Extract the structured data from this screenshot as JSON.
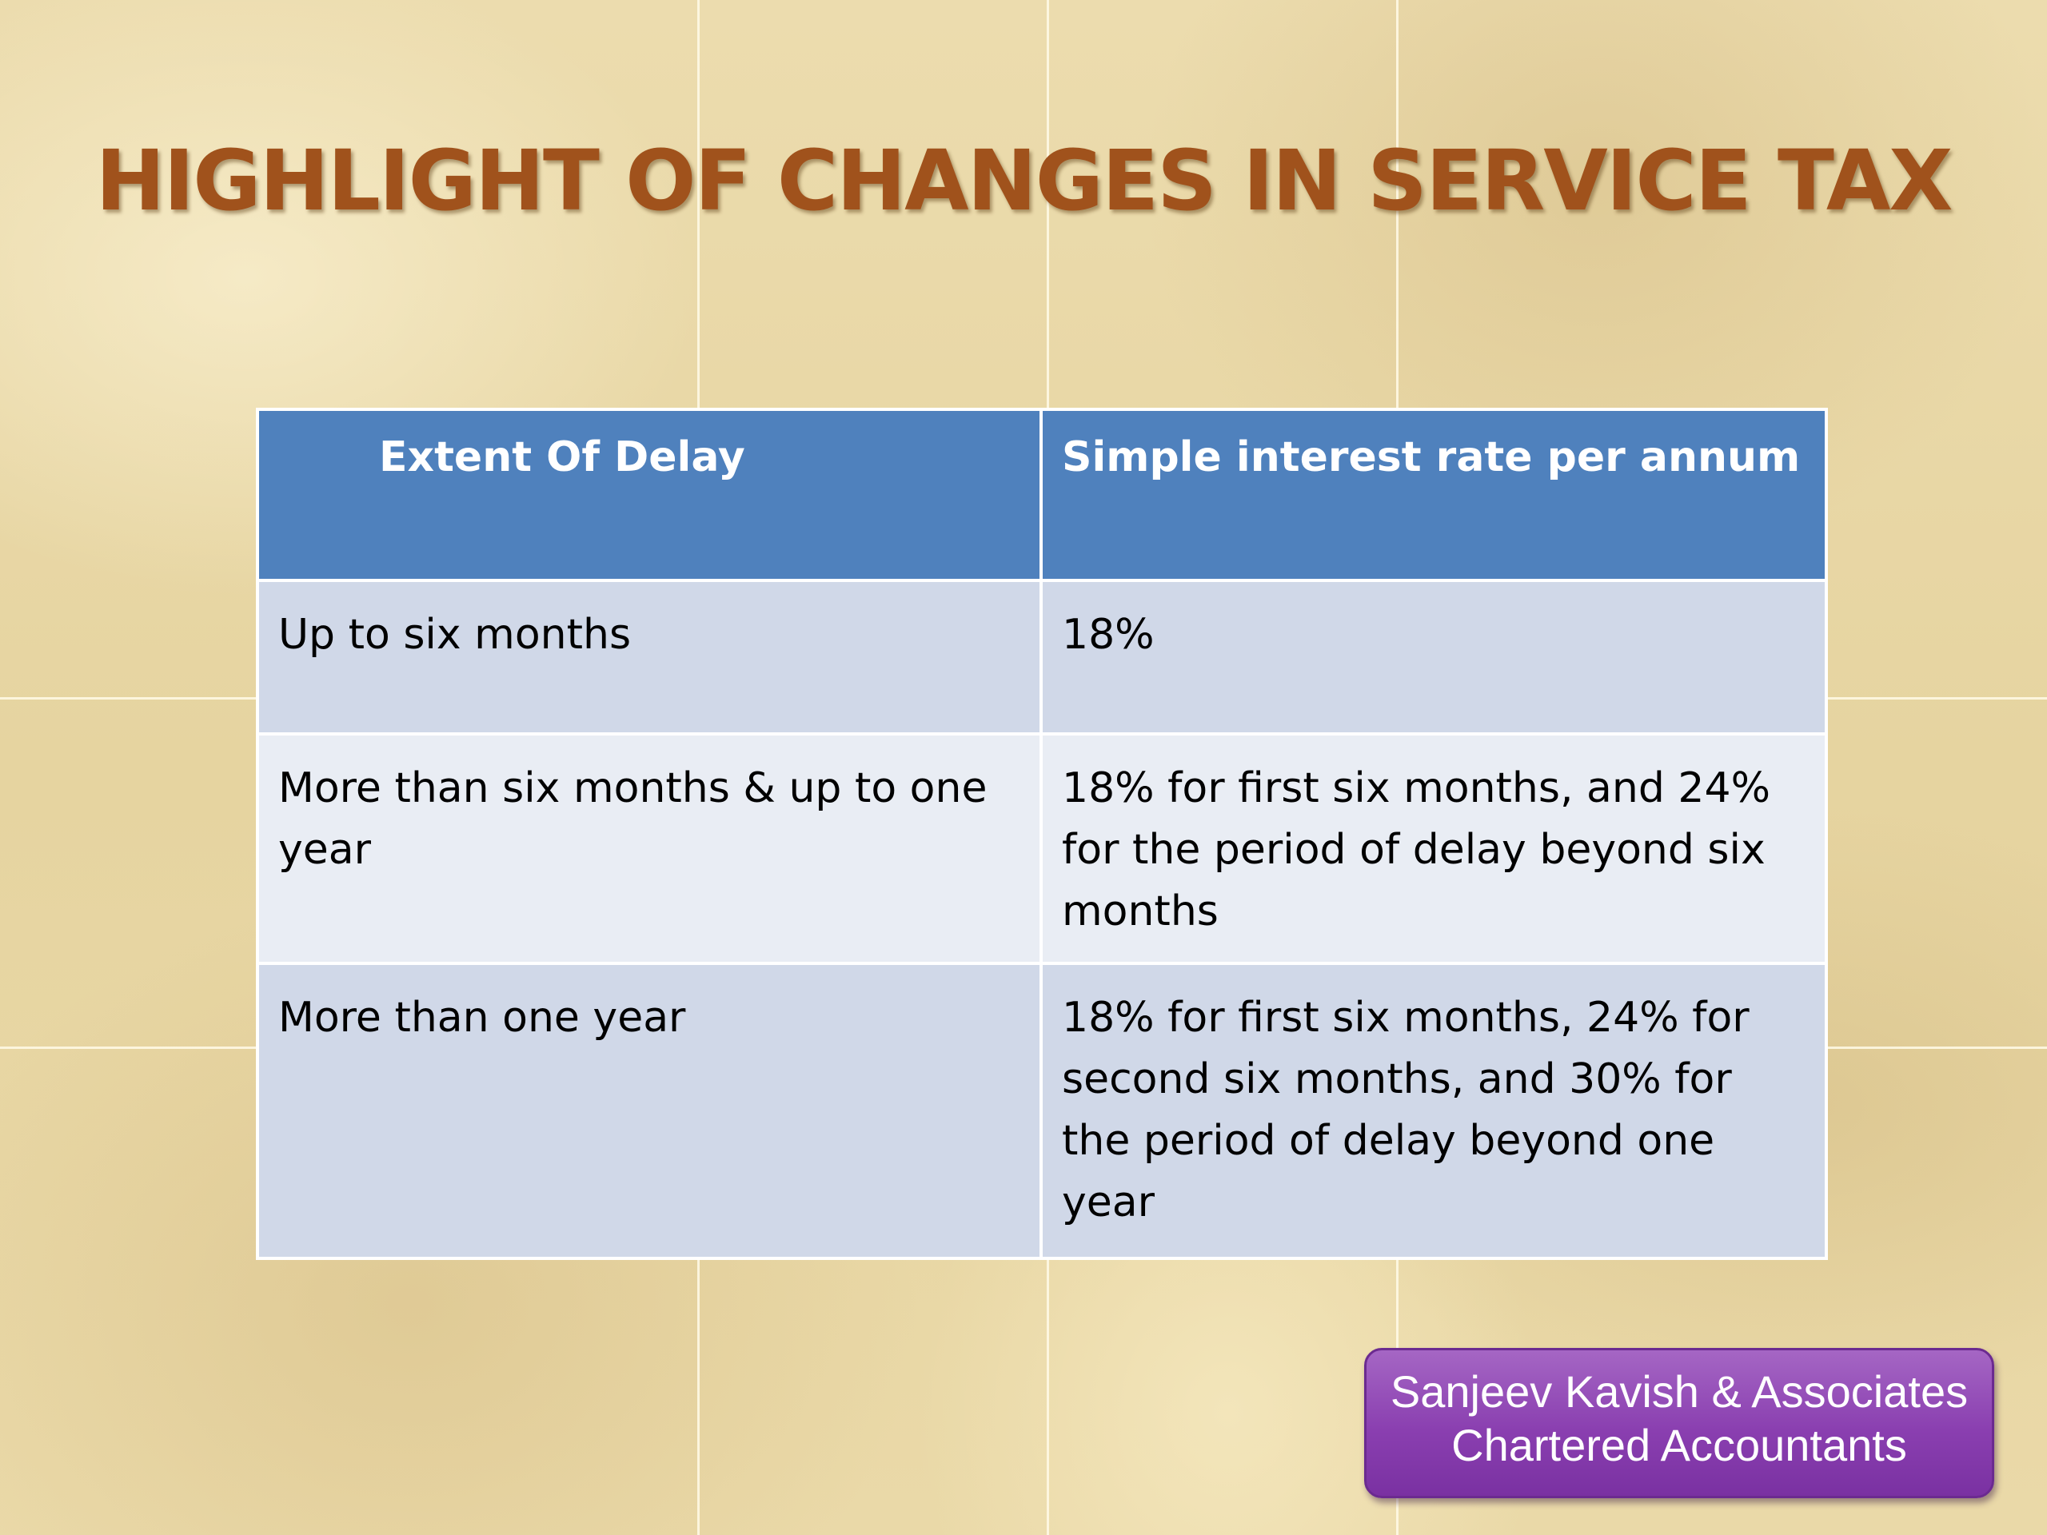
{
  "slide": {
    "title": "HIGHLIGHT OF CHANGES IN SERVICE TAX"
  },
  "table": {
    "headers": [
      "Extent Of Delay",
      "Simple interest rate per annum"
    ],
    "rows": [
      [
        "Up to six months",
        "18%"
      ],
      [
        "More than six months & up to one year",
        "18% for first six months, and 24% for the period of delay beyond six months"
      ],
      [
        "More than one year",
        "18% for first six months, 24% for second six months, and 30% for the period of delay beyond one year"
      ]
    ]
  },
  "firm": {
    "name": "Sanjeev Kavish & Associates",
    "subtitle": "Chartered Accountants"
  },
  "colors": {
    "title": "#a0521c",
    "header_bg": "#4f81bd",
    "row_dark": "#d0d8e8",
    "row_light": "#e9edf4",
    "badge": "#8a3fb0"
  }
}
